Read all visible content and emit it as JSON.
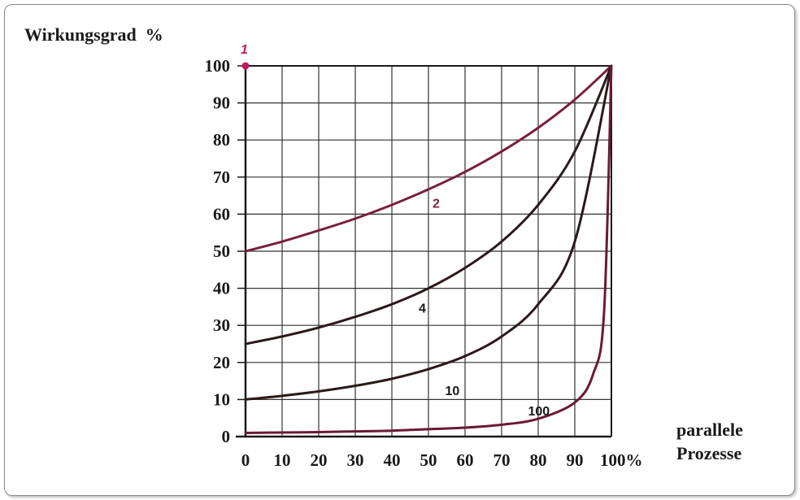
{
  "chart_data": {
    "type": "line",
    "ylabel": "Wirkungsgrad  %",
    "xlabel_line1": "parallele",
    "xlabel_line2": "Prozesse",
    "xlim": [
      0,
      100
    ],
    "ylim": [
      0,
      100
    ],
    "x_ticks": [
      "0",
      "10",
      "20",
      "30",
      "40",
      "50",
      "60",
      "70",
      "80",
      "90",
      "100%"
    ],
    "y_ticks": [
      "0",
      "10",
      "20",
      "30",
      "40",
      "50",
      "60",
      "70",
      "80",
      "90",
      "100"
    ],
    "grid": true,
    "colors": {
      "accent": "#c2185b",
      "curve": "#2b1a1a",
      "grid": "#333333"
    },
    "series": [
      {
        "name": "1",
        "x": [
          0
        ],
        "y": [
          100
        ],
        "color": "#c2185b"
      },
      {
        "name": "2",
        "x": [
          0,
          10,
          20,
          30,
          40,
          50,
          60,
          70,
          80,
          90,
          100
        ],
        "y": [
          50,
          52.6,
          55.6,
          58.8,
          62.5,
          66.7,
          71.4,
          76.9,
          83.3,
          90.9,
          100
        ],
        "color": "#7a1f3d"
      },
      {
        "name": "4",
        "x": [
          0,
          10,
          20,
          30,
          40,
          50,
          60,
          70,
          80,
          90,
          100
        ],
        "y": [
          25,
          27,
          29.4,
          32.3,
          35.7,
          40,
          45.5,
          52.6,
          62.5,
          76.9,
          100
        ],
        "color": "#2b1a1a"
      },
      {
        "name": "10",
        "x": [
          0,
          10,
          20,
          30,
          40,
          50,
          60,
          70,
          80,
          90,
          100
        ],
        "y": [
          10,
          11,
          12.2,
          13.7,
          15.6,
          18.2,
          21.7,
          27,
          35.7,
          52.6,
          100
        ],
        "color": "#2b1a1a"
      },
      {
        "name": "100",
        "x": [
          0,
          10,
          20,
          30,
          40,
          50,
          60,
          70,
          80,
          90,
          95,
          98,
          100
        ],
        "y": [
          1,
          1.1,
          1.2,
          1.4,
          1.6,
          2,
          2.4,
          3.2,
          4.8,
          9.2,
          16.8,
          33.6,
          100
        ],
        "color": "#6a1a35"
      }
    ]
  }
}
